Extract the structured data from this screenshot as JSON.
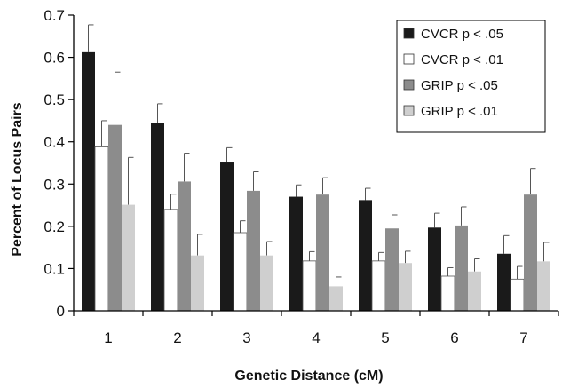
{
  "chart_data": {
    "type": "bar",
    "xlabel": "Genetic Distance (cM)",
    "ylabel": "Percent of Locus Pairs",
    "ylim": [
      0,
      0.7
    ],
    "yticks": [
      "0",
      "0.1",
      "0.2",
      "0.3",
      "0.4",
      "0.5",
      "0.6",
      "0.7"
    ],
    "categories": [
      "1",
      "2",
      "3",
      "4",
      "5",
      "6",
      "7"
    ],
    "legend_position": "top-right",
    "grid": false,
    "error_bars": "upper",
    "series": [
      {
        "name": "CVCR p < .05",
        "color": "#1a1a1a",
        "values": [
          0.612,
          0.445,
          0.351,
          0.27,
          0.262,
          0.197,
          0.135
        ],
        "errors": [
          0.065,
          0.045,
          0.035,
          0.028,
          0.028,
          0.034,
          0.043
        ]
      },
      {
        "name": "CVCR p < .01",
        "color": "#ffffff",
        "values": [
          0.388,
          0.24,
          0.185,
          0.118,
          0.118,
          0.082,
          0.075
        ],
        "errors": [
          0.062,
          0.036,
          0.028,
          0.022,
          0.02,
          0.02,
          0.03
        ]
      },
      {
        "name": "GRIP  p < .05",
        "color": "#8c8c8c",
        "values": [
          0.44,
          0.306,
          0.284,
          0.275,
          0.195,
          0.202,
          0.275
        ],
        "errors": [
          0.125,
          0.067,
          0.045,
          0.04,
          0.032,
          0.044,
          0.062
        ]
      },
      {
        "name": "GRIP  p < .01",
        "color": "#cfcfcf",
        "values": [
          0.251,
          0.131,
          0.131,
          0.058,
          0.113,
          0.093,
          0.117
        ],
        "errors": [
          0.112,
          0.05,
          0.033,
          0.022,
          0.028,
          0.03,
          0.045
        ]
      }
    ]
  }
}
